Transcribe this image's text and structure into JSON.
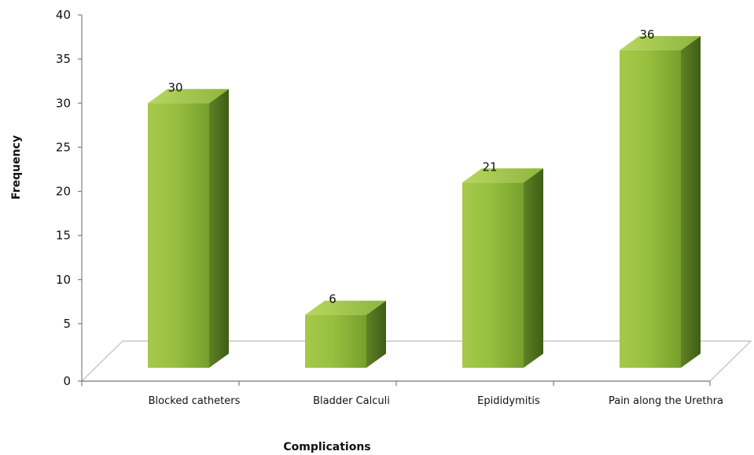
{
  "chart_data": {
    "type": "bar",
    "categories": [
      "Blocked catheters",
      "Bladder Calculi",
      "Epididymitis",
      "Pain along the Urethra"
    ],
    "values": [
      30,
      6,
      21,
      36
    ],
    "data_labels": [
      "30",
      "6",
      "21",
      "36"
    ],
    "xlabel": "Complications",
    "ylabel": "Frequency",
    "ylim": [
      0,
      40
    ],
    "yticks": [
      "0",
      "5",
      "10",
      "15",
      "20",
      "25",
      "30",
      "35",
      "40"
    ],
    "grid": false,
    "legend": "none",
    "style": "3d-column",
    "colors": {
      "bar_front_light": "#a6c94a",
      "bar_front_dark": "#76a02c",
      "bar_top": "#b8d760",
      "bar_side_light": "#5f8125",
      "bar_side_dark": "#3f5d16",
      "axis": "#7f7f7f",
      "floor": "#bcbcbc"
    }
  }
}
